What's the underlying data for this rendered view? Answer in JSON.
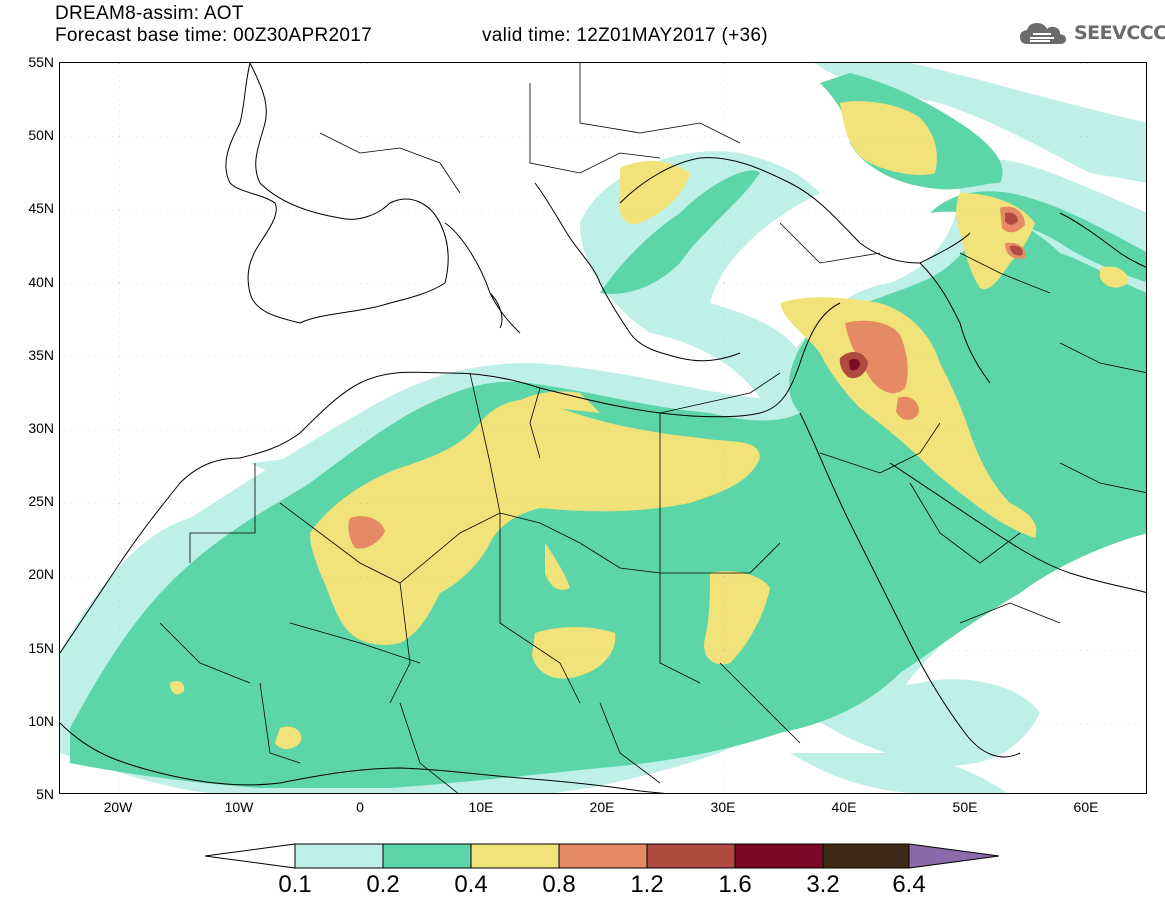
{
  "header": {
    "title": "DREAM8-assim: AOT",
    "base_time": "Forecast base time: 00Z30APR2017",
    "valid_time": "valid time: 12Z01MAY2017 (+36)",
    "logo_text": "SEEVCCC"
  },
  "map": {
    "lat_labels": [
      "55N",
      "50N",
      "45N",
      "40N",
      "35N",
      "30N",
      "25N",
      "20N",
      "15N",
      "10N",
      "5N"
    ],
    "lon_labels": [
      "20W",
      "10W",
      "0",
      "10E",
      "20E",
      "30E",
      "40E",
      "50E",
      "60E"
    ],
    "extent": {
      "lon_min": -25,
      "lon_max": 65,
      "lat_min": 5,
      "lat_max": 55
    }
  },
  "colorbar": {
    "labels": [
      "0.1",
      "0.2",
      "0.4",
      "0.8",
      "1.2",
      "1.6",
      "3.2",
      "6.4"
    ],
    "colors": [
      "#ffffff",
      "#bff0e8",
      "#5cd6a8",
      "#f2e27a",
      "#e58a64",
      "#b04a3e",
      "#7c0a26",
      "#3e2a17",
      "#8a6aa8"
    ]
  },
  "colors": {
    "c01": "#bff0e8",
    "c02": "#5cd6a8",
    "c04": "#f2e27a",
    "c08": "#e58a64",
    "c12": "#b04a3e",
    "c16": "#7c0a26"
  }
}
